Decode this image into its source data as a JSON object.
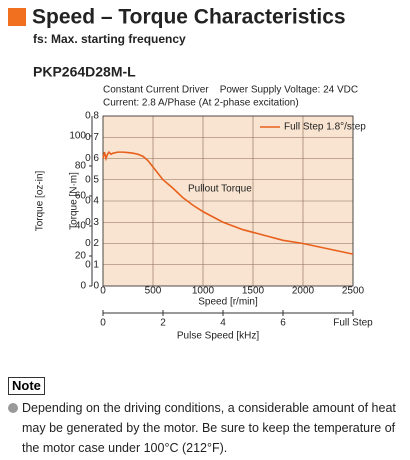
{
  "header": {
    "title": "Speed – Torque Characteristics",
    "subtitle": "fs: Max. starting frequency"
  },
  "chart_data": {
    "type": "line",
    "title": "PKP264D28M-L",
    "conditions": [
      "Constant Current Driver    Power Supply Voltage: 24 VDC",
      "Current: 2.8 A/Phase (At 2-phase excitation)"
    ],
    "annotation": "Pullout Torque",
    "x": [
      0,
      15,
      30,
      45,
      60,
      80,
      100,
      150,
      200,
      250,
      300,
      350,
      400,
      450,
      500,
      550,
      600,
      700,
      800,
      900,
      1000,
      1200,
      1400,
      1600,
      1800,
      2000,
      2200,
      2400,
      2500
    ],
    "series": [
      {
        "name": "Full Step 1.8°/step",
        "color": "#e8601c",
        "values": [
          0.6,
          0.63,
          0.6,
          0.62,
          0.63,
          0.62,
          0.625,
          0.63,
          0.63,
          0.628,
          0.625,
          0.62,
          0.61,
          0.59,
          0.56,
          0.53,
          0.5,
          0.46,
          0.415,
          0.38,
          0.35,
          0.3,
          0.265,
          0.24,
          0.215,
          0.2,
          0.18,
          0.16,
          0.15
        ]
      }
    ],
    "xlim": [
      0,
      2500
    ],
    "xticks": [
      0,
      500,
      1000,
      1500,
      2000,
      2500
    ],
    "ylim": [
      0,
      0.8
    ],
    "yticks": [
      0,
      0.1,
      0.2,
      0.3,
      0.4,
      0.5,
      0.6,
      0.7,
      0.8
    ],
    "y2lim": [
      0,
      113.3
    ],
    "y2ticks": [
      0,
      20,
      40,
      60,
      80,
      100
    ],
    "x2lim": [
      0,
      8.333
    ],
    "x2ticks": [
      0,
      2,
      4,
      6
    ],
    "x2_end_label": "Full Step",
    "xlabel": "Speed [r/min]",
    "ylabel": "Torque [N·m]",
    "y2label": "Torque [oz-in]",
    "x2label": "Pulse Speed [kHz]",
    "grid": true,
    "legend": "upper right"
  },
  "note": {
    "label": "Note",
    "text": "Depending on the driving conditions, a considerable amount of heat may be generated by the motor. Be sure to keep the temperature of the motor case under 100°C (212°F)."
  }
}
